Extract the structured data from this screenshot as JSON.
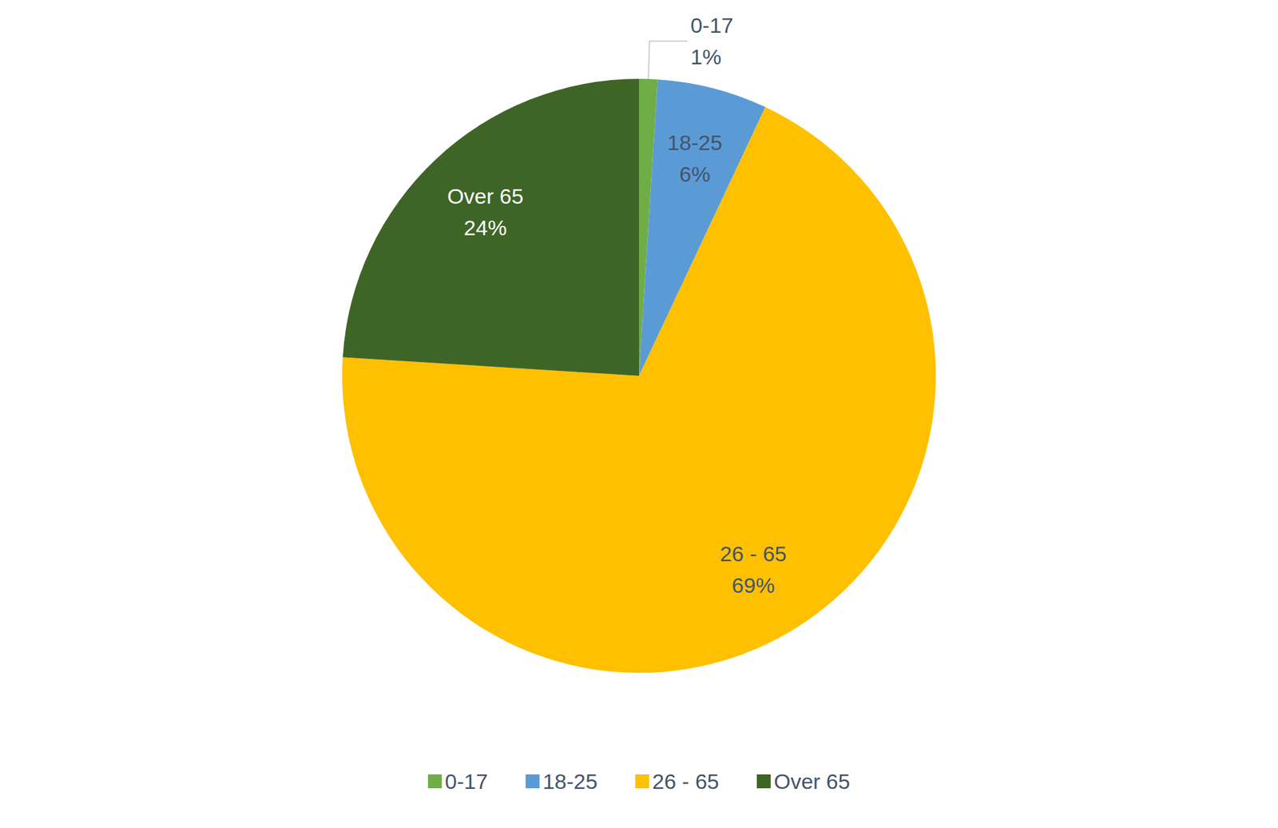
{
  "chart_data": {
    "type": "pie",
    "categories": [
      "0-17",
      "18-25",
      "26 - 65",
      "Over 65"
    ],
    "values": [
      1,
      6,
      69,
      24
    ],
    "value_labels": [
      "1%",
      "6%",
      "69%",
      "24%"
    ],
    "colors": [
      "#70ad47",
      "#5b9bd5",
      "#ffc000",
      "#3f6526"
    ],
    "data_labels": true,
    "legend": "bottom"
  }
}
